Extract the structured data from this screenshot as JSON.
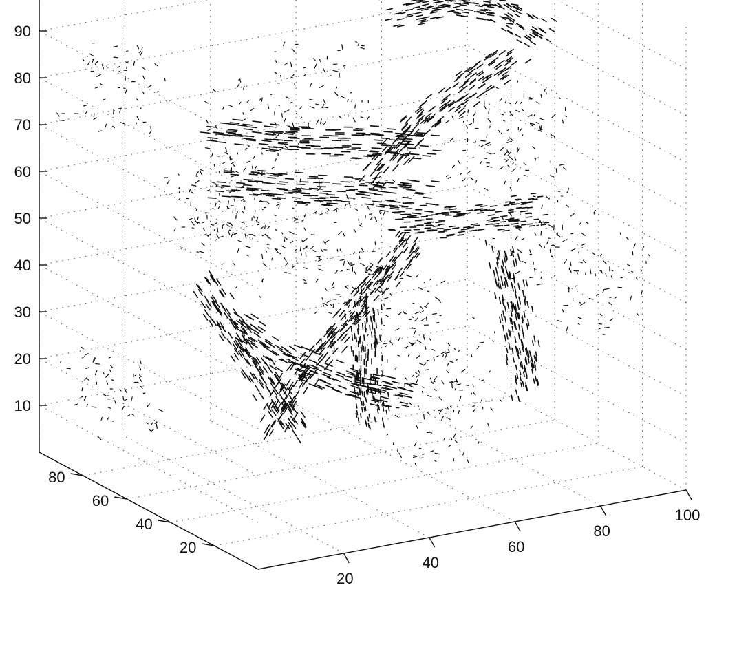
{
  "chart_data": {
    "type": "scatter",
    "subtype": "3d-quiver",
    "title": "",
    "xlabel": "",
    "ylabel": "",
    "zlabel": "",
    "xlim": [
      0,
      100
    ],
    "ylim": [
      0,
      100
    ],
    "zlim": [
      0,
      100
    ],
    "xticks": [
      "20",
      "40",
      "60",
      "80",
      "100"
    ],
    "yticks": [
      "20",
      "40",
      "60",
      "80"
    ],
    "zticks": [
      "10",
      "20",
      "30",
      "40",
      "50",
      "60",
      "70",
      "80",
      "90"
    ],
    "xtick_values": [
      20,
      40,
      60,
      80,
      100
    ],
    "ytick_values": [
      20,
      40,
      60,
      80
    ],
    "ztick_values": [
      10,
      20,
      30,
      40,
      50,
      60,
      70,
      80,
      90
    ],
    "grid": true,
    "grid_style": "dotted",
    "colors": {
      "vectors": "#111111",
      "grid": "#666666",
      "axes": "#111111"
    },
    "legend": "none",
    "series": [
      {
        "kind": "vector-field-streams",
        "curves": [
          {
            "points": [
              [
                20,
                60,
                75
              ],
              [
                35,
                55,
                72
              ],
              [
                50,
                52,
                70
              ],
              [
                65,
                50,
                67
              ]
            ]
          },
          {
            "points": [
              [
                25,
                65,
                62
              ],
              [
                38,
                60,
                60
              ],
              [
                52,
                56,
                58
              ],
              [
                66,
                52,
                55
              ]
            ]
          },
          {
            "points": [
              [
                60,
                55,
                50
              ],
              [
                72,
                56,
                48
              ],
              [
                85,
                57,
                47
              ],
              [
                95,
                58,
                46
              ]
            ]
          },
          {
            "points": [
              [
                18,
                30,
                20
              ],
              [
                28,
                35,
                28
              ],
              [
                40,
                40,
                35
              ],
              [
                52,
                45,
                42
              ],
              [
                62,
                50,
                48
              ]
            ]
          },
          {
            "points": [
              [
                15,
                55,
                45
              ],
              [
                20,
                50,
                35
              ],
              [
                25,
                45,
                25
              ],
              [
                30,
                40,
                15
              ]
            ]
          },
          {
            "points": [
              [
                62,
                70,
                55
              ],
              [
                72,
                68,
                65
              ],
              [
                82,
                66,
                72
              ],
              [
                92,
                64,
                78
              ]
            ]
          },
          {
            "points": [
              [
                70,
                75,
                88
              ],
              [
                80,
                70,
                90
              ],
              [
                90,
                65,
                88
              ],
              [
                98,
                62,
                82
              ]
            ]
          },
          {
            "points": [
              [
                45,
                40,
                40
              ],
              [
                47,
                42,
                30
              ],
              [
                48,
                44,
                20
              ],
              [
                50,
                45,
                12
              ]
            ]
          },
          {
            "points": [
              [
                85,
                55,
                40
              ],
              [
                86,
                52,
                30
              ],
              [
                87,
                50,
                20
              ],
              [
                88,
                48,
                12
              ]
            ]
          },
          {
            "points": [
              [
                30,
                70,
                30
              ],
              [
                40,
                65,
                22
              ],
              [
                52,
                60,
                16
              ],
              [
                64,
                56,
                12
              ]
            ]
          }
        ]
      },
      {
        "kind": "scattered-cells",
        "points": [
          [
            10,
            85,
            15
          ],
          [
            10,
            85,
            80
          ],
          [
            20,
            50,
            60
          ],
          [
            40,
            70,
            45
          ],
          [
            50,
            60,
            35
          ],
          [
            60,
            30,
            25
          ],
          [
            70,
            70,
            25
          ],
          [
            80,
            40,
            70
          ],
          [
            85,
            60,
            60
          ],
          [
            30,
            20,
            65
          ],
          [
            55,
            80,
            75
          ],
          [
            90,
            20,
            40
          ],
          [
            15,
            30,
            85
          ],
          [
            65,
            45,
            10
          ],
          [
            35,
            90,
            50
          ],
          [
            75,
            15,
            55
          ]
        ]
      }
    ]
  }
}
